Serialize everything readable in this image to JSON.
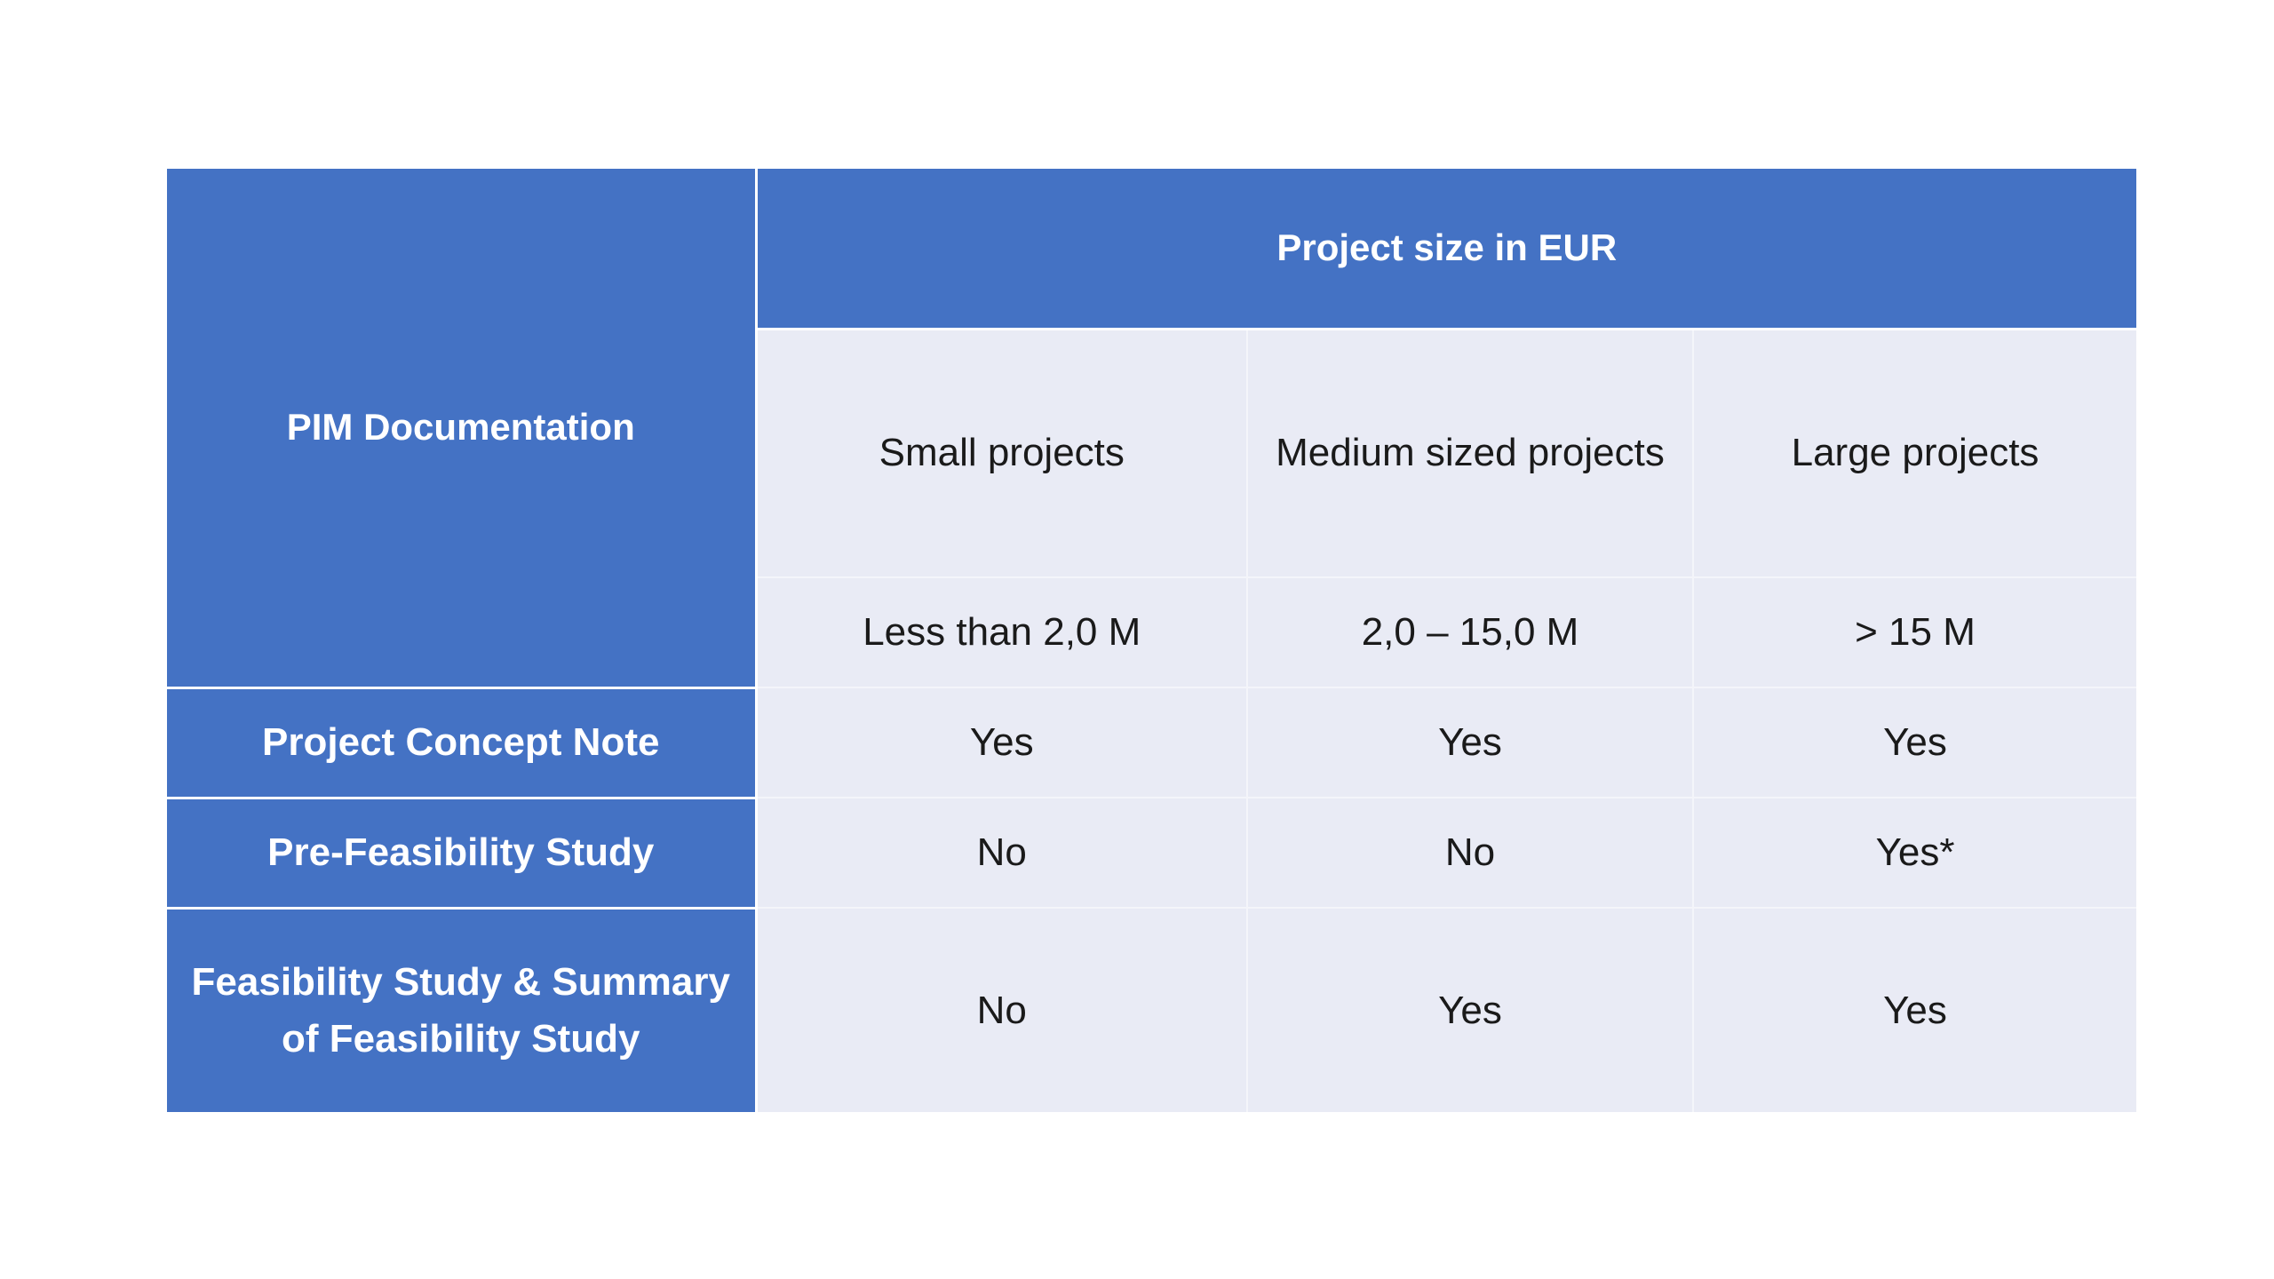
{
  "table": {
    "corner_header": "PIM Documentation",
    "group_header": "Project size in EUR",
    "size_categories": [
      {
        "name": "Small projects",
        "range": "Less than 2,0 M"
      },
      {
        "name": "Medium sized projects",
        "range": "2,0 – 15,0 M"
      },
      {
        "name": "Large projects",
        "range": "> 15 M"
      }
    ],
    "rows": [
      {
        "label": "Project Concept Note",
        "values": [
          "Yes",
          "Yes",
          "Yes"
        ]
      },
      {
        "label": "Pre-Feasibility Study",
        "values": [
          "No",
          "No",
          "Yes*"
        ]
      },
      {
        "label": "Feasibility Study & Summary of Feasibility Study",
        "values": [
          "No",
          "Yes",
          "Yes"
        ]
      }
    ]
  },
  "colors": {
    "header_blue": "#4472c4",
    "cell_background": "#e9ebf5",
    "header_text": "#ffffff",
    "body_text": "#1a1a1a"
  }
}
